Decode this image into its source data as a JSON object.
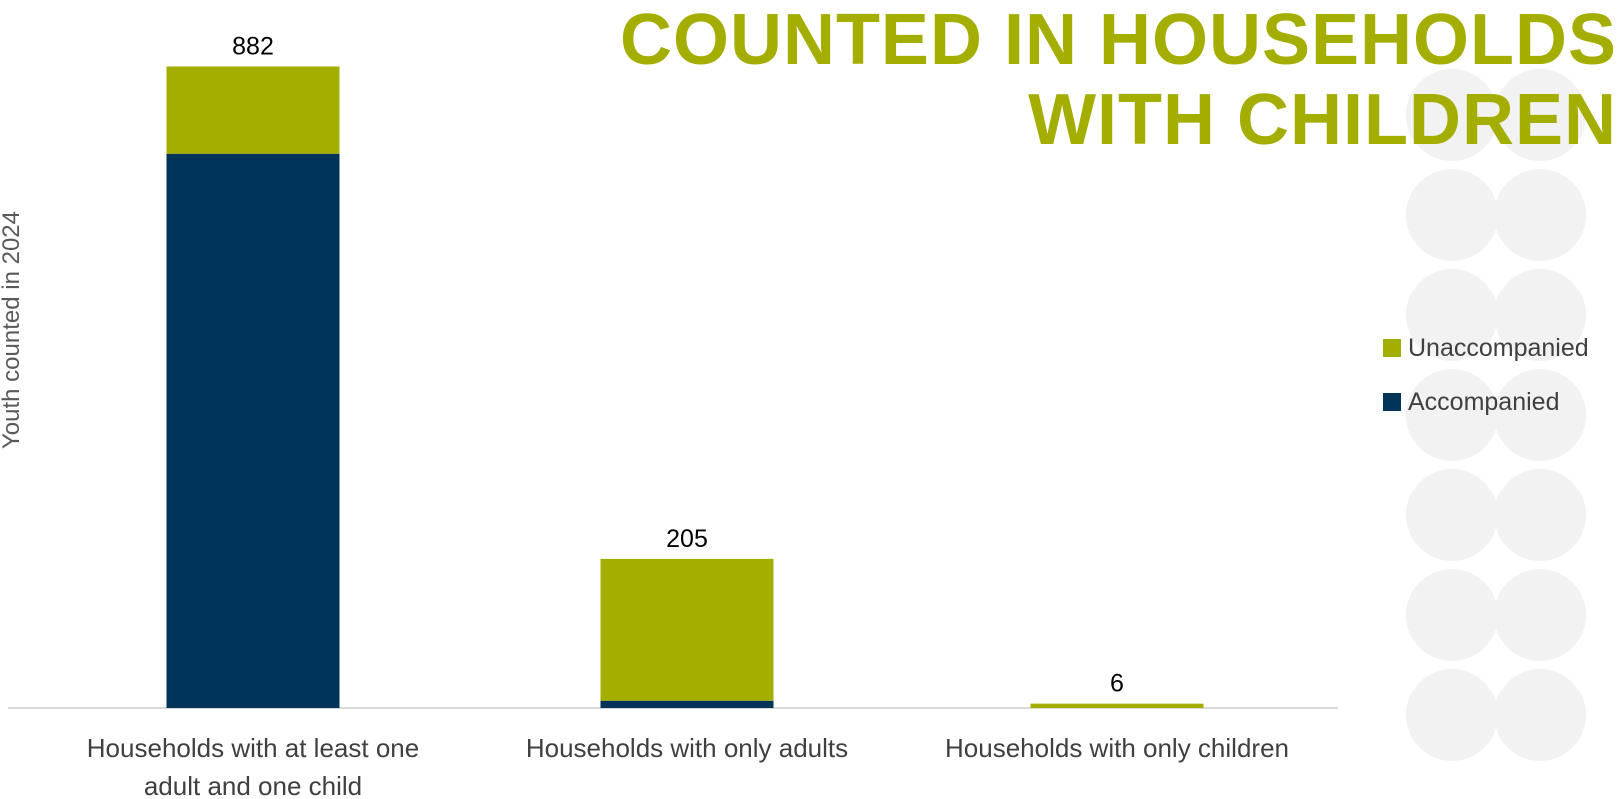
{
  "colors": {
    "accompanied": "#003459",
    "unaccompanied": "#a3ae00",
    "title": "#a3ae00",
    "axis": "#d9d9d9",
    "decor": "#f2f2f2"
  },
  "chart_data": {
    "type": "bar",
    "stacked": true,
    "title_lines": [
      "COUNTED IN HOUSEHOLDS",
      "WITH CHILDREN"
    ],
    "ylabel": "Youth counted in 2024",
    "xlabel": "",
    "categories": [
      [
        "Households with at least one",
        "adult and one child"
      ],
      [
        "Households with only adults"
      ],
      [
        "Households with only children"
      ]
    ],
    "series": [
      {
        "name": "Accompanied",
        "values": [
          762,
          10,
          0
        ]
      },
      {
        "name": "Unaccompanied",
        "values": [
          120,
          195,
          6
        ]
      }
    ],
    "totals": [
      882,
      205,
      6
    ],
    "ylim": [
      0,
      950
    ],
    "grid": false,
    "legend_position": "right"
  }
}
